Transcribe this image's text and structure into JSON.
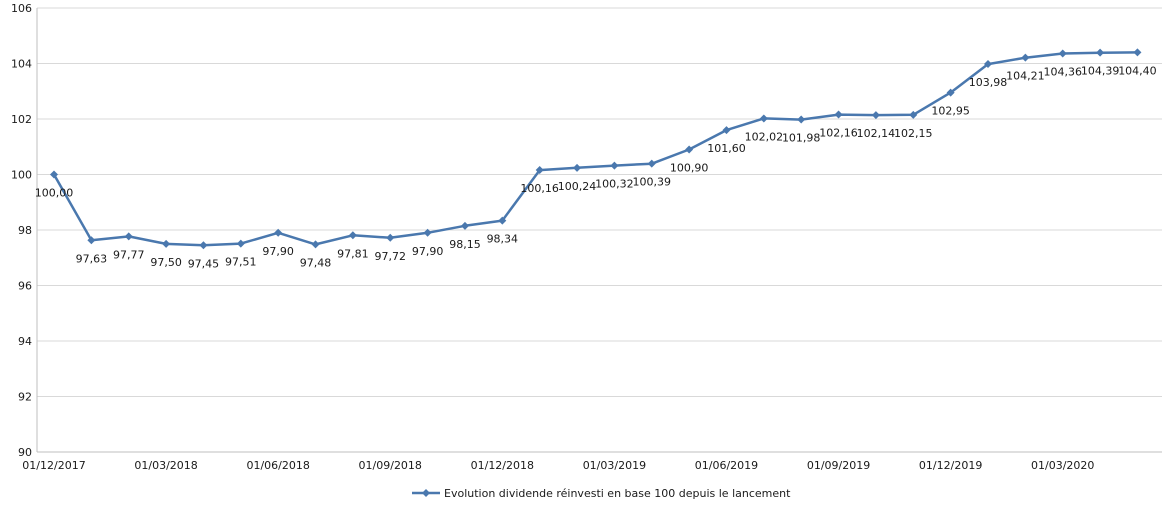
{
  "chart_data": {
    "type": "line",
    "title": "",
    "xlabel": "",
    "ylabel": "",
    "ylim": [
      90,
      106
    ],
    "yticks": [
      "90",
      "92",
      "94",
      "96",
      "98",
      "100",
      "102",
      "104",
      "106"
    ],
    "xticks": [
      "01/12/2017",
      "01/03/2018",
      "01/06/2018",
      "01/09/2018",
      "01/12/2018",
      "01/03/2019",
      "01/06/2019",
      "01/09/2019",
      "01/12/2019",
      "01/03/2020"
    ],
    "grid": "horizontal",
    "legend_position": "bottom",
    "series": [
      {
        "name": "Evolution dividende réinvesti en base 100 depuis le lancement",
        "color": "#4a78ae",
        "marker": "diamond",
        "values": [
          100.0,
          97.63,
          97.77,
          97.5,
          97.45,
          97.51,
          97.9,
          97.48,
          97.81,
          97.72,
          97.9,
          98.15,
          98.34,
          100.16,
          100.24,
          100.32,
          100.39,
          100.9,
          101.6,
          102.02,
          101.98,
          102.16,
          102.14,
          102.15,
          102.95,
          103.98,
          104.21,
          104.36,
          104.39,
          104.4
        ],
        "labels": [
          "100,00",
          "97,63",
          "97,77",
          "97,50",
          "97,45",
          "97,51",
          "97,90",
          "97,48",
          "97,81",
          "97,72",
          "97,90",
          "98,15",
          "98,34",
          "100,16",
          "100,24",
          "100,32",
          "100,39",
          "100,90",
          "101,60",
          "102,02",
          "101,98",
          "102,16",
          "102,14",
          "102,15",
          "102,95",
          "103,98",
          "104,21",
          "104,36",
          "104,39",
          "104,40"
        ]
      }
    ]
  }
}
